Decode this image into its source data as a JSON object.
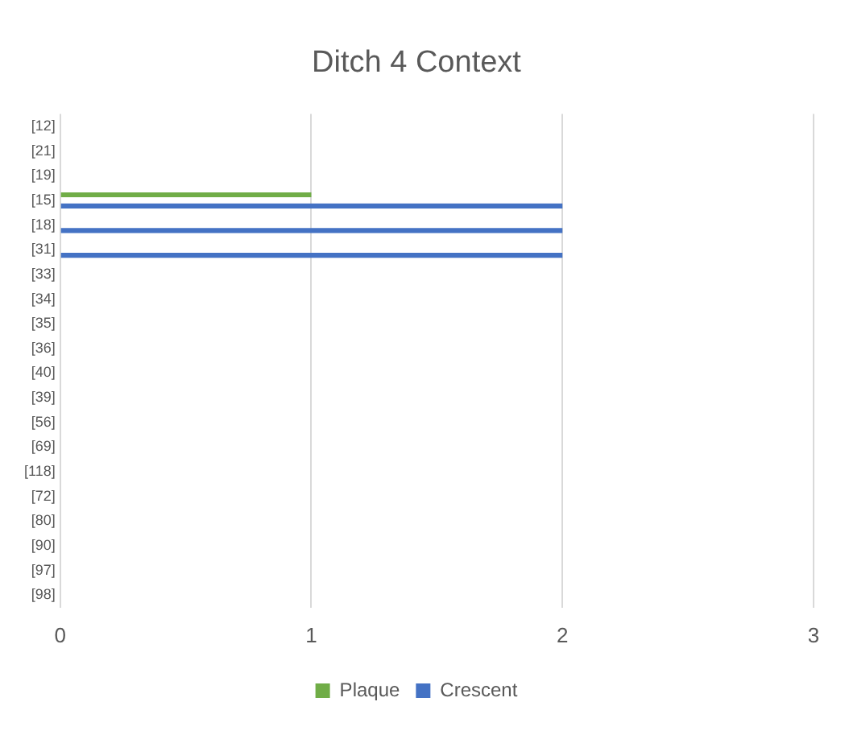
{
  "chart_data": {
    "type": "bar",
    "orientation": "horizontal",
    "title": "Ditch 4 Context",
    "categories": [
      "[12]",
      "[21]",
      "[19]",
      "[15]",
      "[18]",
      "[31]",
      "[33]",
      "[34]",
      "[35]",
      "[36]",
      "[40]",
      "[39]",
      "[56]",
      "[69]",
      "[118]",
      "[72]",
      "[80]",
      "[90]",
      "[97]",
      "[98]"
    ],
    "series": [
      {
        "name": "Plaque",
        "color": "#70ad47",
        "values": [
          null,
          null,
          null,
          1,
          null,
          null,
          null,
          null,
          null,
          null,
          null,
          null,
          null,
          null,
          null,
          null,
          null,
          null,
          null,
          null
        ]
      },
      {
        "name": "Crescent",
        "color": "#4472c4",
        "values": [
          null,
          null,
          null,
          2,
          2,
          2,
          null,
          null,
          null,
          null,
          null,
          null,
          null,
          null,
          null,
          null,
          null,
          null,
          null,
          null
        ]
      }
    ],
    "xlim": [
      0,
      3
    ],
    "xticks": [
      0,
      1,
      2,
      3
    ],
    "grid": "x",
    "legend": "bottom"
  }
}
